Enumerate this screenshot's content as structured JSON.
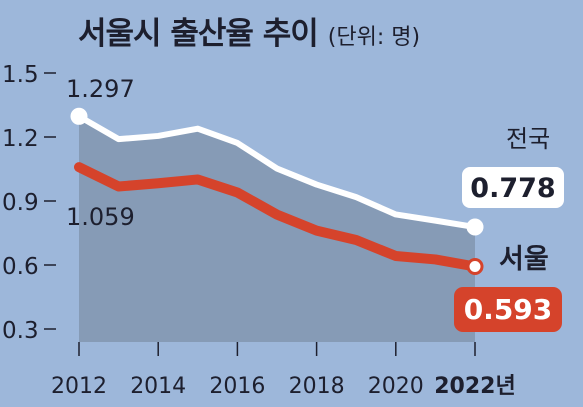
{
  "header": {
    "title": "서울시 출산율 추이",
    "unit": "(단위: 명)"
  },
  "colors": {
    "background": "#9db7da",
    "national_line": "#ffffff",
    "seoul_line": "#d5432b",
    "band_fill": "#7f91aa",
    "text": "#1d1f2e"
  },
  "chart_data": {
    "type": "line",
    "title": "서울시 출산율 추이",
    "unit": "(단위: 명)",
    "x": [
      2012,
      2013,
      2014,
      2015,
      2016,
      2017,
      2018,
      2019,
      2020,
      2021,
      2022
    ],
    "x_tick_labels": [
      "2012",
      "2014",
      "2016",
      "2018",
      "2020",
      "2022년"
    ],
    "x_tick_values": [
      2012,
      2014,
      2016,
      2018,
      2020,
      2022
    ],
    "y_tick_labels": [
      "1.5",
      "1.2",
      "0.9",
      "0.6",
      "0.3"
    ],
    "y_tick_values": [
      1.5,
      1.2,
      0.9,
      0.6,
      0.3
    ],
    "ylim": [
      0.25,
      1.55
    ],
    "grid": false,
    "series": [
      {
        "name": "전국",
        "values": [
          1.297,
          1.19,
          1.205,
          1.239,
          1.172,
          1.052,
          0.977,
          0.918,
          0.837,
          0.808,
          0.778
        ],
        "end_label": "0.778",
        "start_label": "1.297"
      },
      {
        "name": "서울",
        "values": [
          1.059,
          0.968,
          0.983,
          1.001,
          0.94,
          0.836,
          0.761,
          0.717,
          0.642,
          0.626,
          0.593
        ],
        "end_label": "0.593",
        "start_label": "1.059"
      }
    ]
  }
}
